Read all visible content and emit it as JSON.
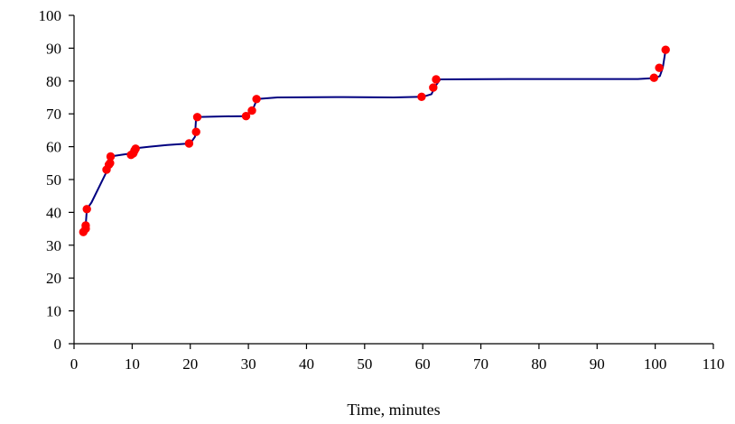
{
  "chart_data": {
    "type": "line",
    "title": "",
    "xlabel": "Time, minutes",
    "ylabel": "",
    "xlim": [
      0,
      110
    ],
    "ylim": [
      0,
      100
    ],
    "xticks": [
      "0",
      "10",
      "20",
      "30",
      "40",
      "50",
      "60",
      "70",
      "80",
      "90",
      "100",
      "110"
    ],
    "yticks": [
      "0",
      "10",
      "20",
      "30",
      "40",
      "50",
      "60",
      "70",
      "80",
      "90",
      "100"
    ],
    "grid": false,
    "legend": "none",
    "series": [
      {
        "line_color": "#000080",
        "line": [
          [
            2.0,
            36
          ],
          [
            2.2,
            41
          ],
          [
            3,
            43
          ],
          [
            5.5,
            52
          ],
          [
            6.2,
            57
          ],
          [
            8,
            57.5
          ],
          [
            10,
            58
          ],
          [
            10.5,
            59.5
          ],
          [
            13,
            60
          ],
          [
            16,
            60.5
          ],
          [
            20,
            61
          ],
          [
            20.8,
            63
          ],
          [
            21,
            69
          ],
          [
            25,
            69.2
          ],
          [
            29.5,
            69.3
          ],
          [
            30.8,
            71.5
          ],
          [
            31.5,
            74.5
          ],
          [
            35,
            75
          ],
          [
            45,
            75.1
          ],
          [
            55,
            75
          ],
          [
            60,
            75.2
          ],
          [
            61.5,
            76
          ],
          [
            62.2,
            78.5
          ],
          [
            63,
            80.5
          ],
          [
            75,
            80.6
          ],
          [
            90,
            80.6
          ],
          [
            97,
            80.6
          ],
          [
            100,
            80.9
          ],
          [
            100.8,
            81.5
          ],
          [
            101.3,
            84
          ],
          [
            101.8,
            89.5
          ]
        ]
      },
      {
        "marker_color": "#ff0000",
        "points": [
          [
            1.6,
            34
          ],
          [
            2.0,
            35
          ],
          [
            2.0,
            36
          ],
          [
            2.2,
            41
          ],
          [
            5.6,
            53
          ],
          [
            6.0,
            54.5
          ],
          [
            6.2,
            55
          ],
          [
            6.3,
            57
          ],
          [
            9.8,
            57.5
          ],
          [
            10.2,
            58
          ],
          [
            10.4,
            58.8
          ],
          [
            10.6,
            59.4
          ],
          [
            19.8,
            61
          ],
          [
            21.0,
            64.5
          ],
          [
            21.2,
            69
          ],
          [
            29.6,
            69.3
          ],
          [
            30.6,
            71
          ],
          [
            31.4,
            74.5
          ],
          [
            59.8,
            75.2
          ],
          [
            61.8,
            78
          ],
          [
            62.3,
            80.5
          ],
          [
            99.8,
            81
          ],
          [
            100.7,
            84
          ],
          [
            101.8,
            89.5
          ]
        ]
      }
    ]
  }
}
